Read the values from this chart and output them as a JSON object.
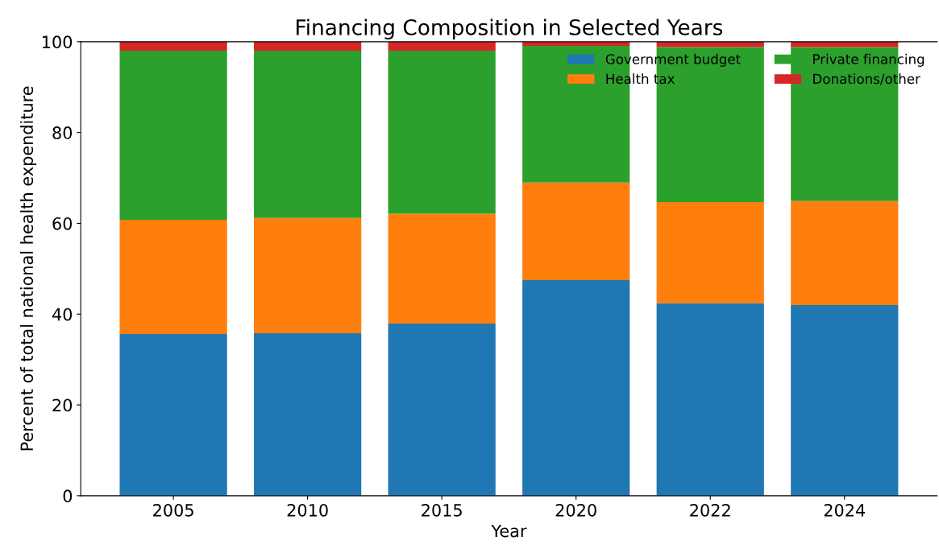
{
  "chart_data": {
    "type": "bar",
    "stacked": true,
    "title": "Financing Composition in Selected Years",
    "xlabel": "Year",
    "ylabel": "Percent of total national health expenditure",
    "categories": [
      "2005",
      "2010",
      "2015",
      "2020",
      "2022",
      "2024"
    ],
    "series": [
      {
        "name": "Government budget",
        "color": "#1f77b4",
        "values": [
          35.6,
          35.8,
          37.9,
          47.5,
          42.4,
          42.0
        ]
      },
      {
        "name": "Health tax",
        "color": "#ff7f0e",
        "values": [
          25.2,
          25.4,
          24.2,
          21.5,
          22.3,
          22.9
        ]
      },
      {
        "name": "Private financing",
        "color": "#2ca02c",
        "values": [
          37.2,
          36.8,
          35.9,
          30.1,
          34.1,
          33.9
        ]
      },
      {
        "name": "Donations/other",
        "color": "#d62728",
        "values": [
          2.0,
          2.0,
          2.0,
          0.9,
          1.2,
          1.2
        ]
      }
    ],
    "ylim": [
      0,
      100
    ],
    "yticks": [
      0,
      20,
      40,
      60,
      80,
      100
    ],
    "grid": false,
    "legend": "top right"
  }
}
